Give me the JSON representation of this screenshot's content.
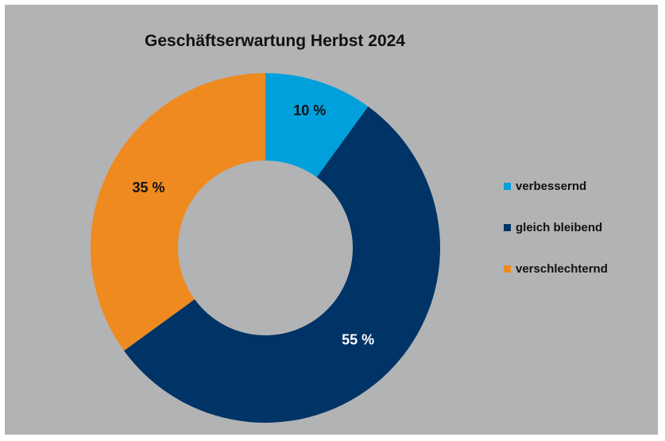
{
  "chart_data": {
    "type": "pie",
    "title": "Geschäftserwartung Herbst 2024",
    "categories": [
      "verbessernd",
      "gleich bleibend",
      "verschlechternd"
    ],
    "values": [
      10,
      55,
      35
    ],
    "value_labels": [
      "10 %",
      "55 %",
      "35 %"
    ],
    "colors": [
      "#00a0dc",
      "#003366",
      "#ee8a1f"
    ],
    "label_colors": [
      "#111111",
      "#ffffff",
      "#111111"
    ],
    "donut": true,
    "legend_position": "right"
  }
}
